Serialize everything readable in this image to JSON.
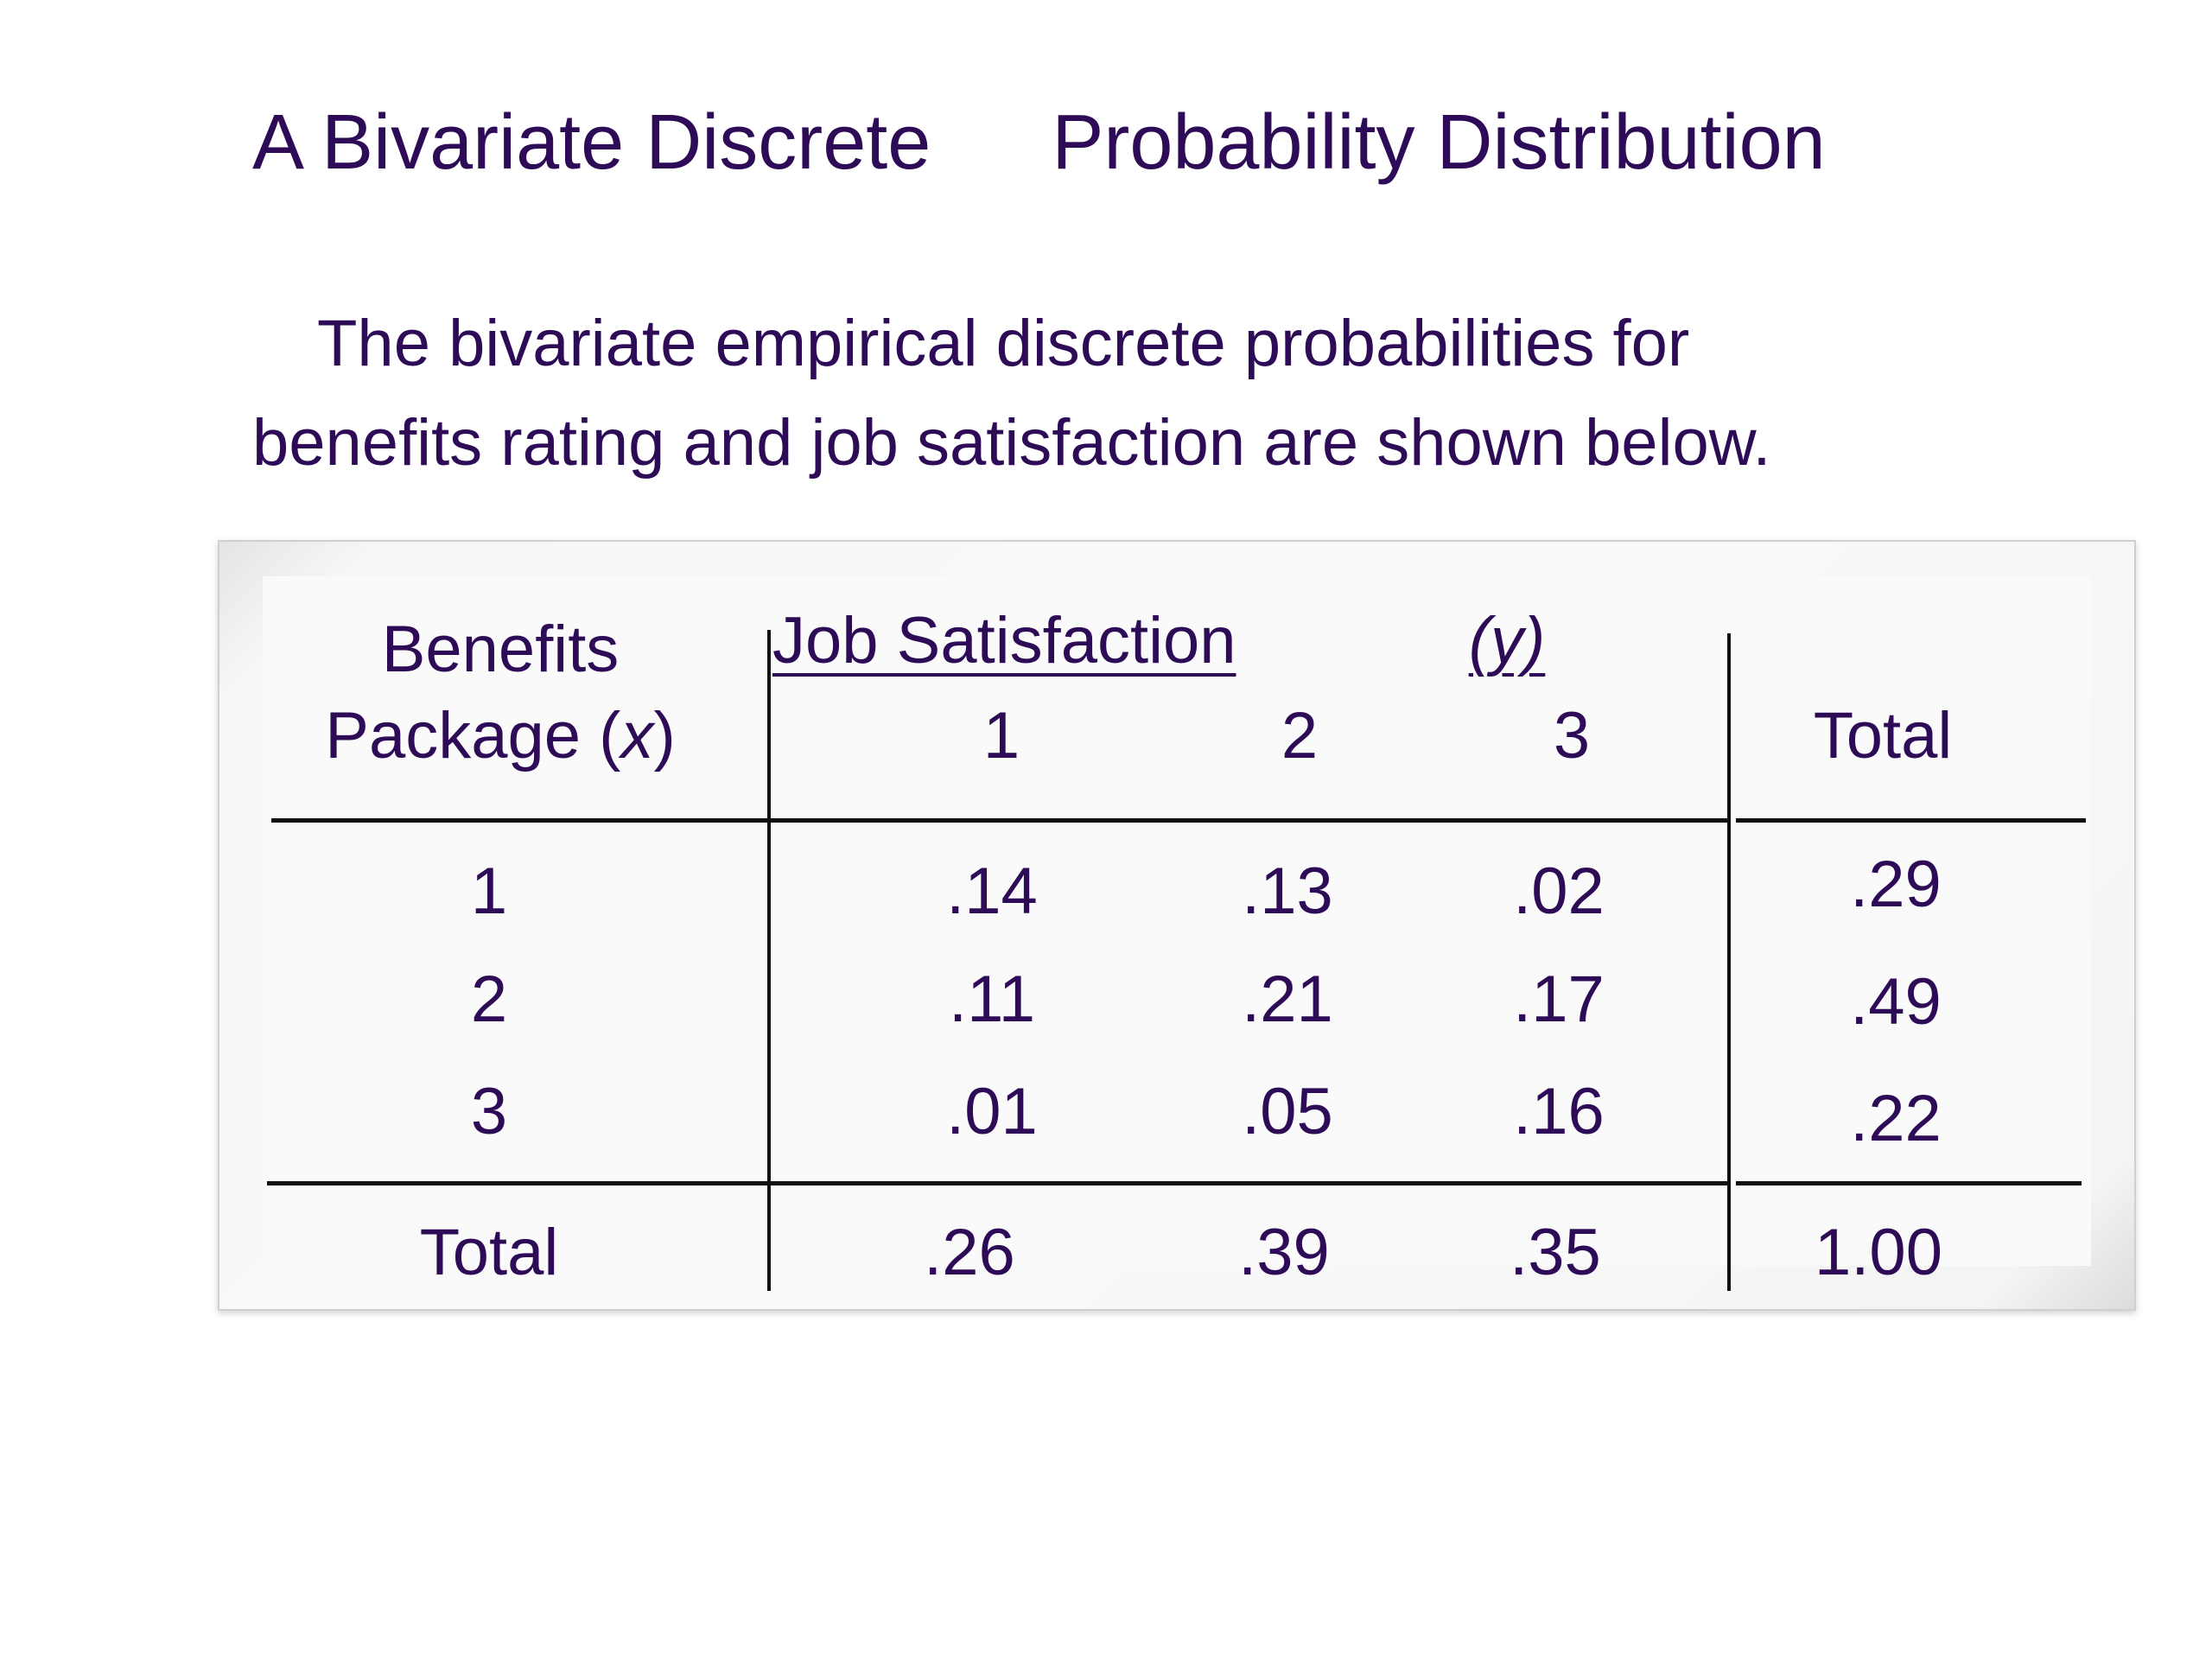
{
  "slide": {
    "title_part1": "A Bivariate Discrete",
    "title_part2": "Probability Distribution",
    "body_line1": "The bivariate empirical discrete probabilities for",
    "body_line2": "benefits rating and job satisfaction are shown below."
  },
  "table": {
    "row_header_line1": "Benefits",
    "row_header_line2_text": "Package (",
    "row_header_var": "x",
    "row_header_close": ")",
    "col_group_label": "Job Satisfaction",
    "col_group_var": "(y)",
    "col_headers": [
      "1",
      "2",
      "3"
    ],
    "total_header": "Total",
    "rows": [
      {
        "x": "1",
        "values": [
          ".14",
          ".13",
          ".02"
        ],
        "total": ".29"
      },
      {
        "x": "2",
        "values": [
          ".11",
          ".21",
          ".17"
        ],
        "total": ".49"
      },
      {
        "x": "3",
        "values": [
          ".01",
          ".05",
          ".16"
        ],
        "total": ".22"
      }
    ],
    "total_row": {
      "label": "Total",
      "values": [
        ".26",
        ".39",
        ".35"
      ],
      "total": "1.00"
    }
  }
}
